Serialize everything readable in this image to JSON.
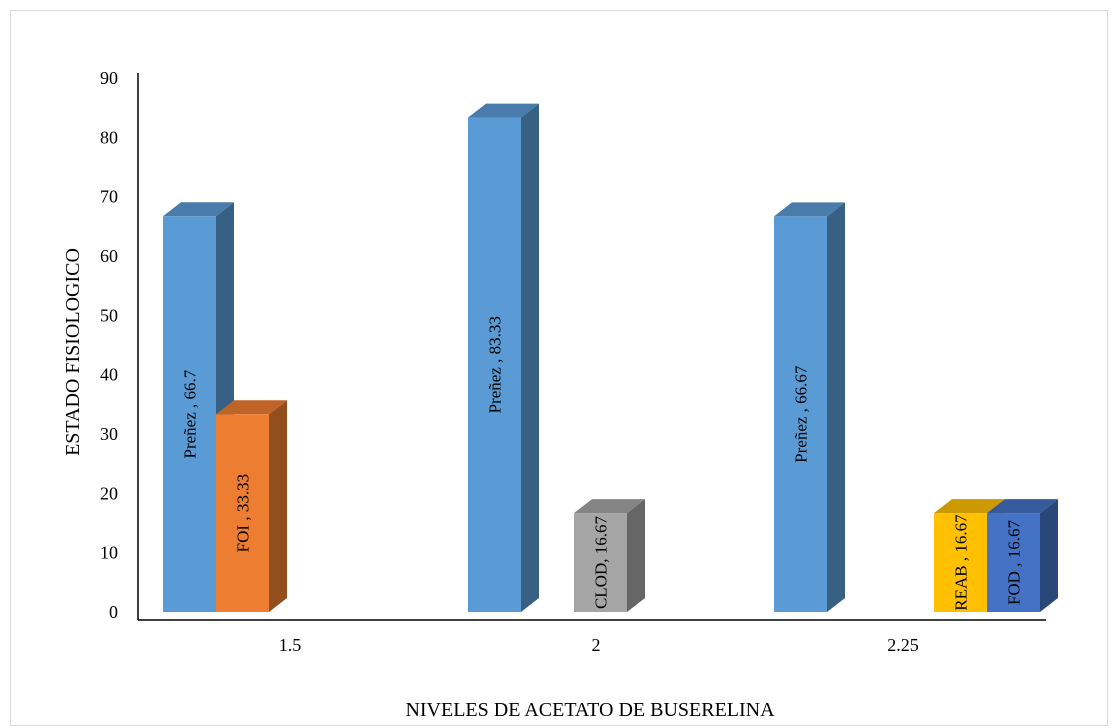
{
  "chart_data": {
    "type": "bar",
    "style": "3d-clustered-column",
    "xlabel": "NIVELES DE ACETATO DE BUSERELINA",
    "ylabel": "ESTADO FISIOLOGICO",
    "ylim": [
      0,
      90
    ],
    "yticks": [
      "0",
      "10",
      "20",
      "30",
      "40",
      "50",
      "60",
      "70",
      "80",
      "90"
    ],
    "grid": false,
    "legend": "none",
    "categories": [
      "1.5",
      "2",
      "2.25"
    ],
    "bars": [
      {
        "category": "1.5",
        "name": "Preñez",
        "value": 66.7,
        "label": "Preñez , 66.7",
        "color": "#5b9bd5"
      },
      {
        "category": "1.5",
        "name": "FOI",
        "value": 33.33,
        "label": "FOI , 33.33",
        "color": "#ed7d31"
      },
      {
        "category": "2",
        "name": "Preñez",
        "value": 83.33,
        "label": "Preñez , 83.33",
        "color": "#5b9bd5"
      },
      {
        "category": "2",
        "name": "CLOD",
        "value": 16.67,
        "label": "CLOD, 16.67",
        "color": "#a5a5a5"
      },
      {
        "category": "2.25",
        "name": "Preñez",
        "value": 66.67,
        "label": "Preñez , 66.67",
        "color": "#5b9bd5"
      },
      {
        "category": "2.25",
        "name": "REAB",
        "value": 16.67,
        "label": "REAB , 16.67",
        "color": "#ffc000"
      },
      {
        "category": "2.25",
        "name": "FOD",
        "value": 16.67,
        "label": "FOD , 16.67",
        "color": "#4472c4"
      }
    ]
  }
}
